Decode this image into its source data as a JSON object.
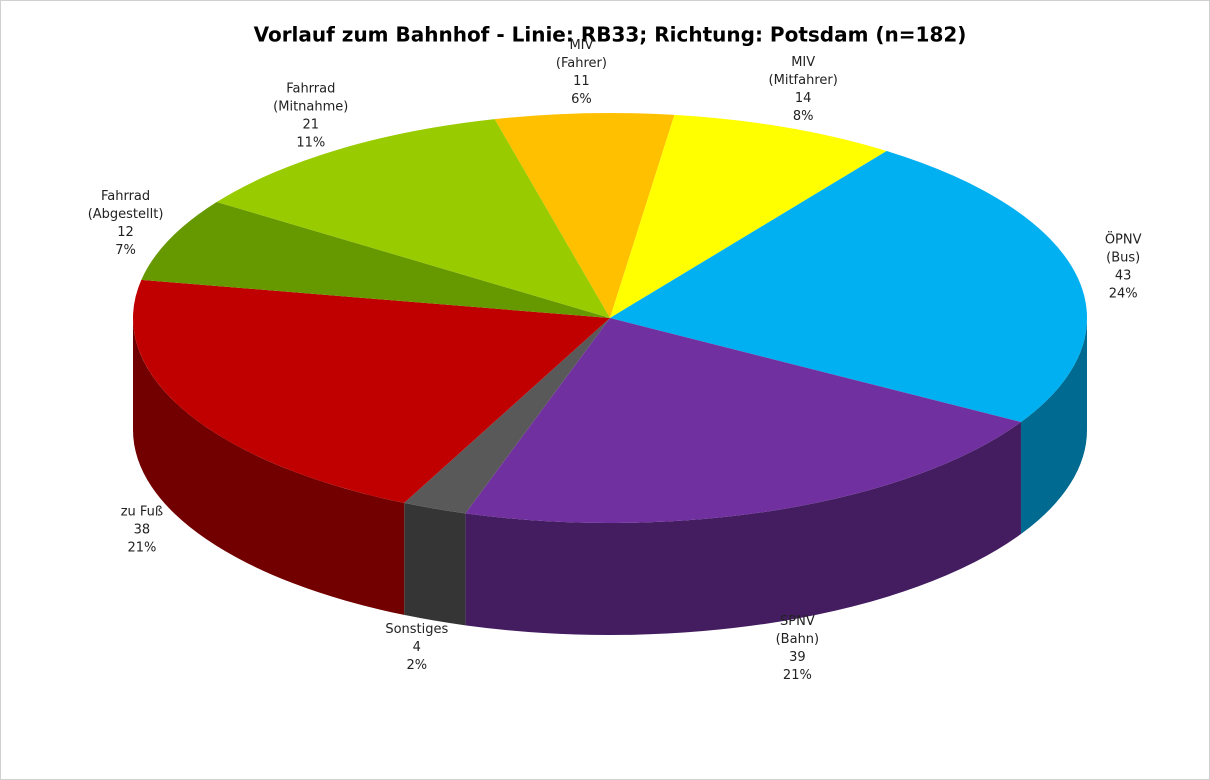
{
  "chart_data": {
    "type": "pie3d",
    "title": "Vorlauf zum Bahnhof - Linie: RB33; Richtung: Potsdam (n=182)",
    "categories": [
      [
        "MIV",
        "(Fahrer)"
      ],
      [
        "MIV",
        "(Mitfahrer)"
      ],
      [
        "ÖPNV",
        "(Bus)"
      ],
      [
        "SPNV",
        "(Bahn)"
      ],
      [
        "Sonstiges"
      ],
      [
        "zu Fuß"
      ],
      [
        "Fahrrad",
        "(Abgestellt)"
      ],
      [
        "Fahrrad",
        "(Mitnahme)"
      ]
    ],
    "values": [
      11,
      14,
      43,
      39,
      4,
      38,
      12,
      21
    ],
    "shares": [
      {
        "value": 6,
        "label": "6%"
      },
      {
        "value": 8,
        "label": "8%"
      },
      {
        "value": 24,
        "label": "24%"
      },
      {
        "value": 21,
        "label": "21%"
      },
      {
        "value": 2,
        "label": "2%"
      },
      {
        "value": 21,
        "label": "21%"
      },
      {
        "value": 7,
        "label": "7%"
      },
      {
        "value": 11,
        "label": "11%"
      }
    ],
    "colors": [
      "#ffc000",
      "#ffff00",
      "#00b0f0",
      "#7030a0",
      "#595959",
      "#c00000",
      "#669900",
      "#99cc00"
    ]
  }
}
